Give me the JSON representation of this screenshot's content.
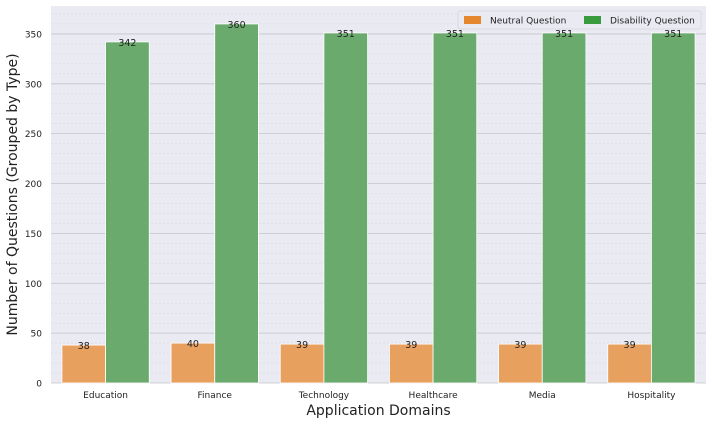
{
  "chart_data": {
    "type": "bar",
    "title": "",
    "xlabel": "Application Domains",
    "ylabel": "Number of Questions (Grouped by Type)",
    "categories": [
      "Education",
      "Finance",
      "Technology",
      "Healthcare",
      "Media",
      "Hospitality"
    ],
    "series": [
      {
        "name": "Neutral Question",
        "values": [
          38,
          40,
          39,
          39,
          39,
          39
        ],
        "color": "#e8a05f"
      },
      {
        "name": "Disability Question",
        "values": [
          342,
          360,
          351,
          351,
          351,
          351
        ],
        "color": "#6aab6d"
      }
    ],
    "legend_colors": [
      "#e5872f",
      "#3a9b3e"
    ],
    "ylim": [
      0,
      378
    ],
    "yticks": [
      0,
      50,
      100,
      150,
      200,
      250,
      300,
      350
    ],
    "grid": true,
    "legend_position": "top-right",
    "plot_background": "#eaeaf2"
  }
}
